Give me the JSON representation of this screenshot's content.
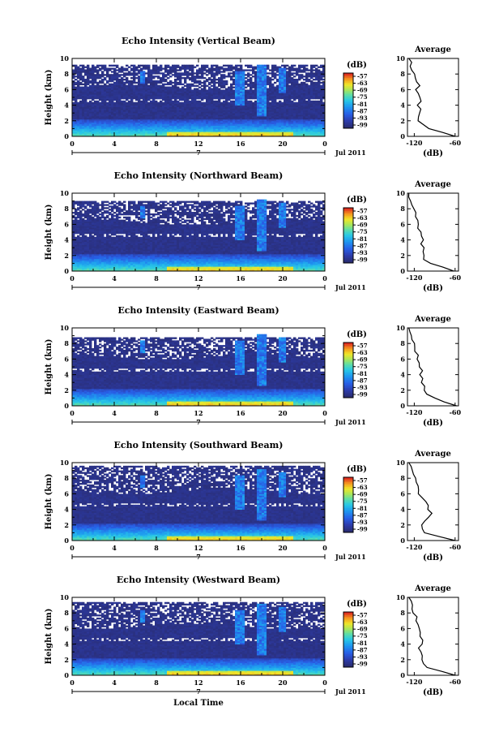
{
  "chart_data": [
    {
      "type": "heatmap",
      "title": "Echo Intensity (Vertical Beam)",
      "ylabel": "Height (km)",
      "xlabel": "",
      "x_ticks": [
        "0",
        "4",
        "8",
        "12",
        "16",
        "20",
        "0"
      ],
      "y_ticks": [
        "0",
        "2",
        "4",
        "6",
        "8",
        "10"
      ],
      "xlim": [
        0,
        24
      ],
      "ylim": [
        0,
        10
      ],
      "date_marker": "7",
      "date_label": "Jul 2011",
      "colorbar": {
        "title": "(dB)",
        "labels": [
          "-57",
          "-63",
          "-69",
          "-75",
          "-81",
          "-87",
          "-93",
          "-99"
        ]
      },
      "average": {
        "title": "Average",
        "xlabel": "(dB)",
        "x_ticks": [
          "-120",
          "-60"
        ],
        "y_ticks": [
          "0",
          "2",
          "4",
          "6",
          "8",
          "10"
        ],
        "xlim": [
          -130,
          -55
        ],
        "ylim": [
          0,
          10
        ],
        "height": [
          0.0,
          0.5,
          1.0,
          1.5,
          2.0,
          2.5,
          3.0,
          3.5,
          4.0,
          4.5,
          5.0,
          5.5,
          6.0,
          6.5,
          7.0,
          7.5,
          8.0,
          8.5,
          9.0,
          9.5,
          10.0
        ],
        "db": [
          -60,
          -80,
          -100,
          -108,
          -112,
          -112,
          -114,
          -112,
          -114,
          -110,
          -112,
          -114,
          -116,
          -114,
          -118,
          -118,
          -120,
          -122,
          -124,
          -126,
          -128
        ]
      }
    },
    {
      "type": "heatmap",
      "title": "Echo Intensity (Northward Beam)",
      "ylabel": "Height (km)",
      "xlabel": "",
      "x_ticks": [
        "0",
        "4",
        "8",
        "12",
        "16",
        "20",
        "0"
      ],
      "y_ticks": [
        "0",
        "2",
        "4",
        "6",
        "8",
        "10"
      ],
      "xlim": [
        0,
        24
      ],
      "ylim": [
        0,
        10
      ],
      "date_marker": "7",
      "date_label": "Jul 2011",
      "colorbar": {
        "title": "(dB)",
        "labels": [
          "-57",
          "-63",
          "-69",
          "-75",
          "-81",
          "-87",
          "-93",
          "-99"
        ]
      },
      "average": {
        "title": "Average",
        "xlabel": "(dB)",
        "x_ticks": [
          "-120",
          "-60"
        ],
        "y_ticks": [
          "0",
          "2",
          "4",
          "6",
          "8",
          "10"
        ],
        "xlim": [
          -130,
          -55
        ],
        "ylim": [
          0,
          10
        ],
        "height": [
          0.0,
          0.5,
          1.0,
          1.5,
          2.0,
          2.5,
          3.0,
          3.5,
          4.0,
          4.5,
          5.0,
          5.5,
          6.0,
          6.5,
          7.0,
          7.5,
          8.0,
          8.5,
          9.0,
          9.5,
          10.0
        ],
        "db": [
          -62,
          -78,
          -94,
          -104,
          -108,
          -108,
          -106,
          -110,
          -106,
          -108,
          -110,
          -114,
          -112,
          -116,
          -116,
          -118,
          -120,
          -122,
          -124,
          -126,
          -128
        ]
      }
    },
    {
      "type": "heatmap",
      "title": "Echo Intensity (Eastward Beam)",
      "ylabel": "Height (km)",
      "xlabel": "",
      "x_ticks": [
        "0",
        "4",
        "8",
        "12",
        "16",
        "20",
        "0"
      ],
      "y_ticks": [
        "0",
        "2",
        "4",
        "6",
        "8",
        "10"
      ],
      "xlim": [
        0,
        24
      ],
      "ylim": [
        0,
        10
      ],
      "date_marker": "7",
      "date_label": "Jul 2011",
      "colorbar": {
        "title": "(dB)",
        "labels": [
          "-57",
          "-63",
          "-69",
          "-75",
          "-81",
          "-87",
          "-93",
          "-99"
        ]
      },
      "average": {
        "title": "Average",
        "xlabel": "(dB)",
        "x_ticks": [
          "-120",
          "-60"
        ],
        "y_ticks": [
          "0",
          "2",
          "4",
          "6",
          "8",
          "10"
        ],
        "xlim": [
          -130,
          -55
        ],
        "ylim": [
          0,
          10
        ],
        "height": [
          0.0,
          0.5,
          1.0,
          1.5,
          2.0,
          2.5,
          3.0,
          3.5,
          4.0,
          4.5,
          5.0,
          5.5,
          6.0,
          6.5,
          7.0,
          7.5,
          8.0,
          8.5,
          9.0,
          9.5,
          10.0
        ],
        "db": [
          -58,
          -76,
          -92,
          -102,
          -106,
          -106,
          -108,
          -106,
          -110,
          -108,
          -112,
          -114,
          -114,
          -116,
          -118,
          -118,
          -120,
          -122,
          -124,
          -126,
          -128
        ]
      }
    },
    {
      "type": "heatmap",
      "title": "Echo Intensity (Southward Beam)",
      "ylabel": "Height (km)",
      "xlabel": "",
      "x_ticks": [
        "0",
        "4",
        "8",
        "12",
        "16",
        "20",
        "0"
      ],
      "y_ticks": [
        "0",
        "2",
        "4",
        "6",
        "8",
        "10"
      ],
      "xlim": [
        0,
        24
      ],
      "ylim": [
        0,
        10
      ],
      "date_marker": "7",
      "date_label": "Jul 2011",
      "colorbar": {
        "title": "(dB)",
        "labels": [
          "-57",
          "-63",
          "-69",
          "-75",
          "-81",
          "-87",
          "-93",
          "-99"
        ]
      },
      "average": {
        "title": "Average",
        "xlabel": "(dB)",
        "x_ticks": [
          "-120",
          "-60"
        ],
        "y_ticks": [
          "0",
          "2",
          "4",
          "6",
          "8",
          "10"
        ],
        "xlim": [
          -130,
          -55
        ],
        "ylim": [
          0,
          10
        ],
        "height": [
          0.0,
          0.5,
          1.0,
          1.5,
          2.0,
          2.5,
          3.0,
          3.5,
          4.0,
          4.5,
          5.0,
          5.5,
          6.0,
          6.5,
          7.0,
          7.5,
          8.0,
          8.5,
          9.0,
          9.5,
          10.0
        ],
        "db": [
          -60,
          -82,
          -104,
          -110,
          -108,
          -104,
          -98,
          -96,
          -98,
          -100,
          -104,
          -108,
          -112,
          -116,
          -116,
          -118,
          -120,
          -122,
          -124,
          -126,
          -128
        ]
      }
    },
    {
      "type": "heatmap",
      "title": "Echo Intensity (Westward Beam)",
      "ylabel": "Height (km)",
      "xlabel": "Local Time",
      "x_ticks": [
        "0",
        "4",
        "8",
        "12",
        "16",
        "20",
        "0"
      ],
      "y_ticks": [
        "0",
        "2",
        "4",
        "6",
        "8",
        "10"
      ],
      "xlim": [
        0,
        24
      ],
      "ylim": [
        0,
        10
      ],
      "date_marker": "7",
      "date_label": "Jul 2011",
      "colorbar": {
        "title": "(dB)",
        "labels": [
          "-57",
          "-63",
          "-69",
          "-75",
          "-81",
          "-87",
          "-93",
          "-99"
        ]
      },
      "average": {
        "title": "Average",
        "xlabel": "(dB)",
        "x_ticks": [
          "-120",
          "-60"
        ],
        "y_ticks": [
          "0",
          "2",
          "4",
          "6",
          "8",
          "10"
        ],
        "xlim": [
          -130,
          -55
        ],
        "ylim": [
          0,
          10
        ],
        "height": [
          0.0,
          0.5,
          1.0,
          1.5,
          2.0,
          2.5,
          3.0,
          3.5,
          4.0,
          4.5,
          5.0,
          5.5,
          6.0,
          6.5,
          7.0,
          7.5,
          8.0,
          8.5,
          9.0,
          9.5,
          10.0
        ],
        "db": [
          -60,
          -80,
          -100,
          -108,
          -110,
          -110,
          -110,
          -114,
          -110,
          -108,
          -110,
          -112,
          -114,
          -116,
          -118,
          -118,
          -120,
          -122,
          -124,
          -126,
          -128
        ]
      }
    }
  ]
}
